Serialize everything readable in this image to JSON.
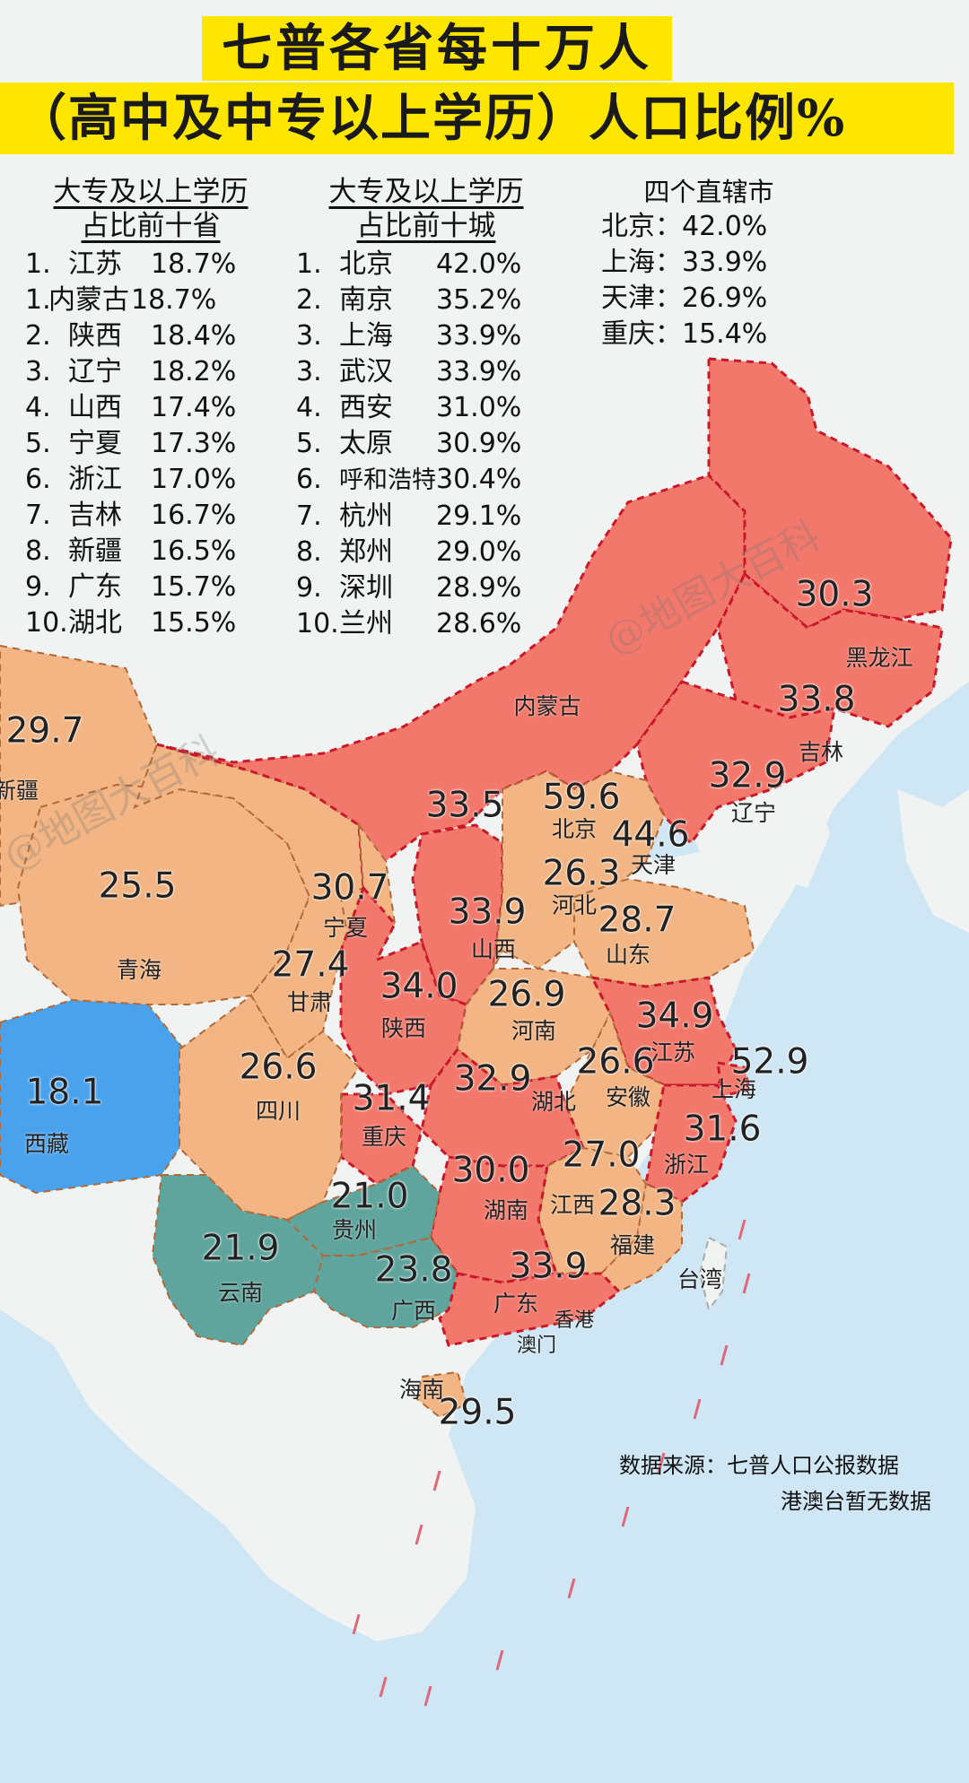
{
  "title_line1": "七普各省每十万人",
  "title_line2": "（高中及中专以上学历）人口比例%",
  "colors": {
    "sea": "#cfe6f5",
    "land": "#f1f3f2",
    "high": "#f2786b",
    "mid": "#f2b583",
    "low": "#4aa2ec",
    "teal": "#5fa49d",
    "accent": "#ffe600",
    "border": "#c8192a"
  },
  "province_panel": {
    "heading1": "大专及以上学历",
    "heading2": "占比前十省",
    "rows": [
      {
        "rank": "1.",
        "name": "江苏",
        "pct": "18.7%"
      },
      {
        "rank": "1.",
        "name": "内蒙古",
        "pct": "18.7%"
      },
      {
        "rank": "2.",
        "name": "陕西",
        "pct": "18.4%"
      },
      {
        "rank": "3.",
        "name": "辽宁",
        "pct": "18.2%"
      },
      {
        "rank": "4.",
        "name": "山西",
        "pct": "17.4%"
      },
      {
        "rank": "5.",
        "name": "宁夏",
        "pct": "17.3%"
      },
      {
        "rank": "6.",
        "name": "浙江",
        "pct": "17.0%"
      },
      {
        "rank": "7.",
        "name": "吉林",
        "pct": "16.7%"
      },
      {
        "rank": "8.",
        "name": "新疆",
        "pct": "16.5%"
      },
      {
        "rank": "9.",
        "name": "广东",
        "pct": "15.7%"
      },
      {
        "rank": "10.",
        "name": "湖北",
        "pct": "15.5%"
      }
    ]
  },
  "city_panel": {
    "heading1": "大专及以上学历",
    "heading2": "占比前十城",
    "rows": [
      {
        "rank": "1.",
        "name": "北京",
        "pct": "42.0%"
      },
      {
        "rank": "2.",
        "name": "南京",
        "pct": "35.2%"
      },
      {
        "rank": "3.",
        "name": "上海",
        "pct": "33.9%"
      },
      {
        "rank": "3.",
        "name": "武汉",
        "pct": "33.9%"
      },
      {
        "rank": "4.",
        "name": "西安",
        "pct": "31.0%"
      },
      {
        "rank": "5.",
        "name": "太原",
        "pct": "30.9%"
      },
      {
        "rank": "6.",
        "name": "呼和浩特",
        "pct": "30.4%"
      },
      {
        "rank": "7.",
        "name": "杭州",
        "pct": "29.1%"
      },
      {
        "rank": "8.",
        "name": "郑州",
        "pct": "29.0%"
      },
      {
        "rank": "9.",
        "name": "深圳",
        "pct": "28.9%"
      },
      {
        "rank": "10.",
        "name": "兰州",
        "pct": "28.6%"
      }
    ]
  },
  "municipality_panel": {
    "heading": "四个直辖市",
    "rows": [
      "北京：42.0%",
      "上海：33.9%",
      "天津：26.9%",
      "重庆：15.4%"
    ]
  },
  "provinces": [
    {
      "name": "新疆",
      "value": "29.7"
    },
    {
      "name": "黑龙江",
      "value": "30.3"
    },
    {
      "name": "吉林",
      "value": "33.8"
    },
    {
      "name": "辽宁",
      "value": "32.9"
    },
    {
      "name": "内蒙古",
      "value": "33.5"
    },
    {
      "name": "北京",
      "value": "59.6"
    },
    {
      "name": "天津",
      "value": "44.6"
    },
    {
      "name": "河北",
      "value": "26.3"
    },
    {
      "name": "山东",
      "value": "28.7"
    },
    {
      "name": "山西",
      "value": "33.9"
    },
    {
      "name": "宁夏",
      "value": "30.7"
    },
    {
      "name": "甘肃",
      "value": "27.4"
    },
    {
      "name": "青海",
      "value": "25.5"
    },
    {
      "name": "陕西",
      "value": "34.0"
    },
    {
      "name": "河南",
      "value": "26.9"
    },
    {
      "name": "江苏",
      "value": "34.9"
    },
    {
      "name": "上海",
      "value": "52.9"
    },
    {
      "name": "安徽",
      "value": "26.6"
    },
    {
      "name": "湖北",
      "value": "32.9"
    },
    {
      "name": "四川",
      "value": "26.6"
    },
    {
      "name": "重庆",
      "value": "31.4"
    },
    {
      "name": "西藏",
      "value": "18.1"
    },
    {
      "name": "浙江",
      "value": "31.6"
    },
    {
      "name": "江西",
      "value": "27.0"
    },
    {
      "name": "湖南",
      "value": "30.0"
    },
    {
      "name": "贵州",
      "value": "21.0"
    },
    {
      "name": "福建",
      "value": "28.3"
    },
    {
      "name": "云南",
      "value": "21.9"
    },
    {
      "name": "广西",
      "value": "23.8"
    },
    {
      "name": "广东",
      "value": "33.9"
    },
    {
      "name": "海南",
      "value": "29.5"
    }
  ],
  "extra_labels": {
    "taiwan": "台湾",
    "hongkong": "香港",
    "macau": "澳门"
  },
  "notes": {
    "source": "数据来源：七普人口公报数据",
    "missing": "港澳台暂无数据"
  },
  "watermark": "@地图大百科"
}
